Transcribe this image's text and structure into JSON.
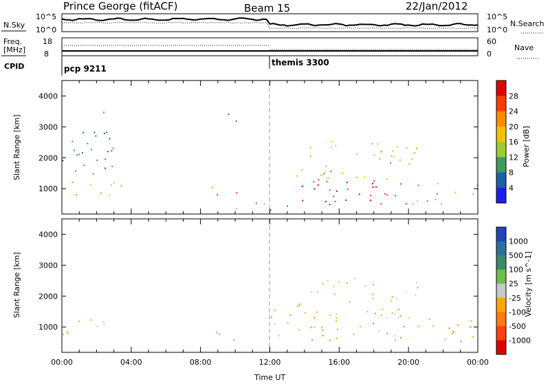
{
  "header": {
    "station": "Prince George (fitACF)",
    "beam": "Beam 15",
    "date": "22/Jan/2012"
  },
  "top_panel": {
    "left_label": "N.Sky",
    "left_ticks": [
      "10^5",
      "10^0"
    ],
    "right_label": "N.Search",
    "right_ticks": [
      "10^5",
      "10^0"
    ]
  },
  "freq_panel": {
    "left_label_1": "Freq.",
    "left_label_2": "[MHz]",
    "left_ticks": [
      "18",
      "8"
    ],
    "right_label": "Nave",
    "right_ticks": [
      "60",
      "0"
    ]
  },
  "cpid": {
    "label": "CPID",
    "segments": [
      {
        "name": "pcp 9211",
        "start_hour": 0
      },
      {
        "name": "themis 3300",
        "start_hour": 12
      }
    ]
  },
  "x_axis": {
    "label": "Time UT",
    "ticks": [
      "00:00",
      "04:00",
      "08:00",
      "12:00",
      "16:00",
      "20:00",
      "00:00"
    ]
  },
  "power_colorbar": {
    "label": "Power [dB]",
    "ticks": [
      "28",
      "24",
      "20",
      "16",
      "12",
      "8",
      "4"
    ],
    "colors": [
      "#e00000",
      "#ff3a00",
      "#ff8c00",
      "#f2c200",
      "#9acd32",
      "#3c9c5a",
      "#1f5fa8",
      "#1e1ee8"
    ]
  },
  "velocity_colorbar": {
    "label": "Velocity [m s^-1]",
    "ticks": [
      "1000",
      "500",
      "100",
      "25",
      "-25",
      "-100",
      "-500",
      "-1000"
    ],
    "colors": [
      "#2244bb",
      "#2f6fa0",
      "#3a8a6a",
      "#6bbf4a",
      "#c8c8c8",
      "#ffa500",
      "#ff7a10",
      "#ff4010",
      "#e00000"
    ]
  },
  "chart_data": {
    "type": "heatmap",
    "title": "Prince George (fitACF)  Beam 15  22/Jan/2012",
    "xlabel": "Time UT",
    "xlim": [
      0,
      24
    ],
    "panels": [
      {
        "name": "power",
        "ylabel": "Slant Range [km]",
        "ylim": [
          180,
          4500
        ],
        "yticks": [
          "1000",
          "2000",
          "3000",
          "4000"
        ],
        "colorbar": "Power [dB]",
        "clim": [
          0,
          30
        ],
        "scatter_regions": [
          {
            "t0": 0.0,
            "t1": 3.4,
            "r0": 700,
            "r1": 1300,
            "value": 18
          },
          {
            "t0": 0.0,
            "t1": 3.0,
            "r0": 1300,
            "r1": 3500,
            "value": 8
          },
          {
            "t0": 8.5,
            "t1": 10.3,
            "r0": 600,
            "r1": 1100,
            "value": 22
          },
          {
            "t0": 9.3,
            "t1": 10.2,
            "r0": 3000,
            "r1": 3500,
            "value": 8
          },
          {
            "t0": 10.0,
            "t1": 12.0,
            "r0": 250,
            "r1": 600,
            "value": 10
          },
          {
            "t0": 12.0,
            "t1": 13.5,
            "r0": 250,
            "r1": 550,
            "value": 24
          },
          {
            "t0": 13.0,
            "t1": 20.0,
            "r0": 500,
            "r1": 1600,
            "value": 26
          },
          {
            "t0": 13.5,
            "t1": 20.5,
            "r0": 1300,
            "r1": 2600,
            "value": 14
          },
          {
            "t0": 20.0,
            "t1": 24.0,
            "r0": 500,
            "r1": 1300,
            "value": 12
          }
        ]
      },
      {
        "name": "velocity",
        "ylabel": "Slant Range [km]",
        "ylim": [
          180,
          4500
        ],
        "yticks": [
          "1000",
          "2000",
          "3000",
          "4000"
        ],
        "colorbar": "Velocity [m s^-1]",
        "clim": [
          -1000,
          1000
        ],
        "scatter_regions": [
          {
            "t0": 0.0,
            "t1": 3.4,
            "r0": 700,
            "r1": 1300,
            "value": 0
          },
          {
            "t0": 8.5,
            "t1": 10.3,
            "r0": 600,
            "r1": 1100,
            "value": 300
          },
          {
            "t0": 12.0,
            "t1": 20.0,
            "r0": 500,
            "r1": 1600,
            "value": -300
          },
          {
            "t0": 13.5,
            "t1": 20.5,
            "r0": 1300,
            "r1": 2600,
            "value": -150
          },
          {
            "t0": 20.0,
            "t1": 24.0,
            "r0": 500,
            "r1": 1300,
            "value": -400
          }
        ]
      }
    ]
  }
}
